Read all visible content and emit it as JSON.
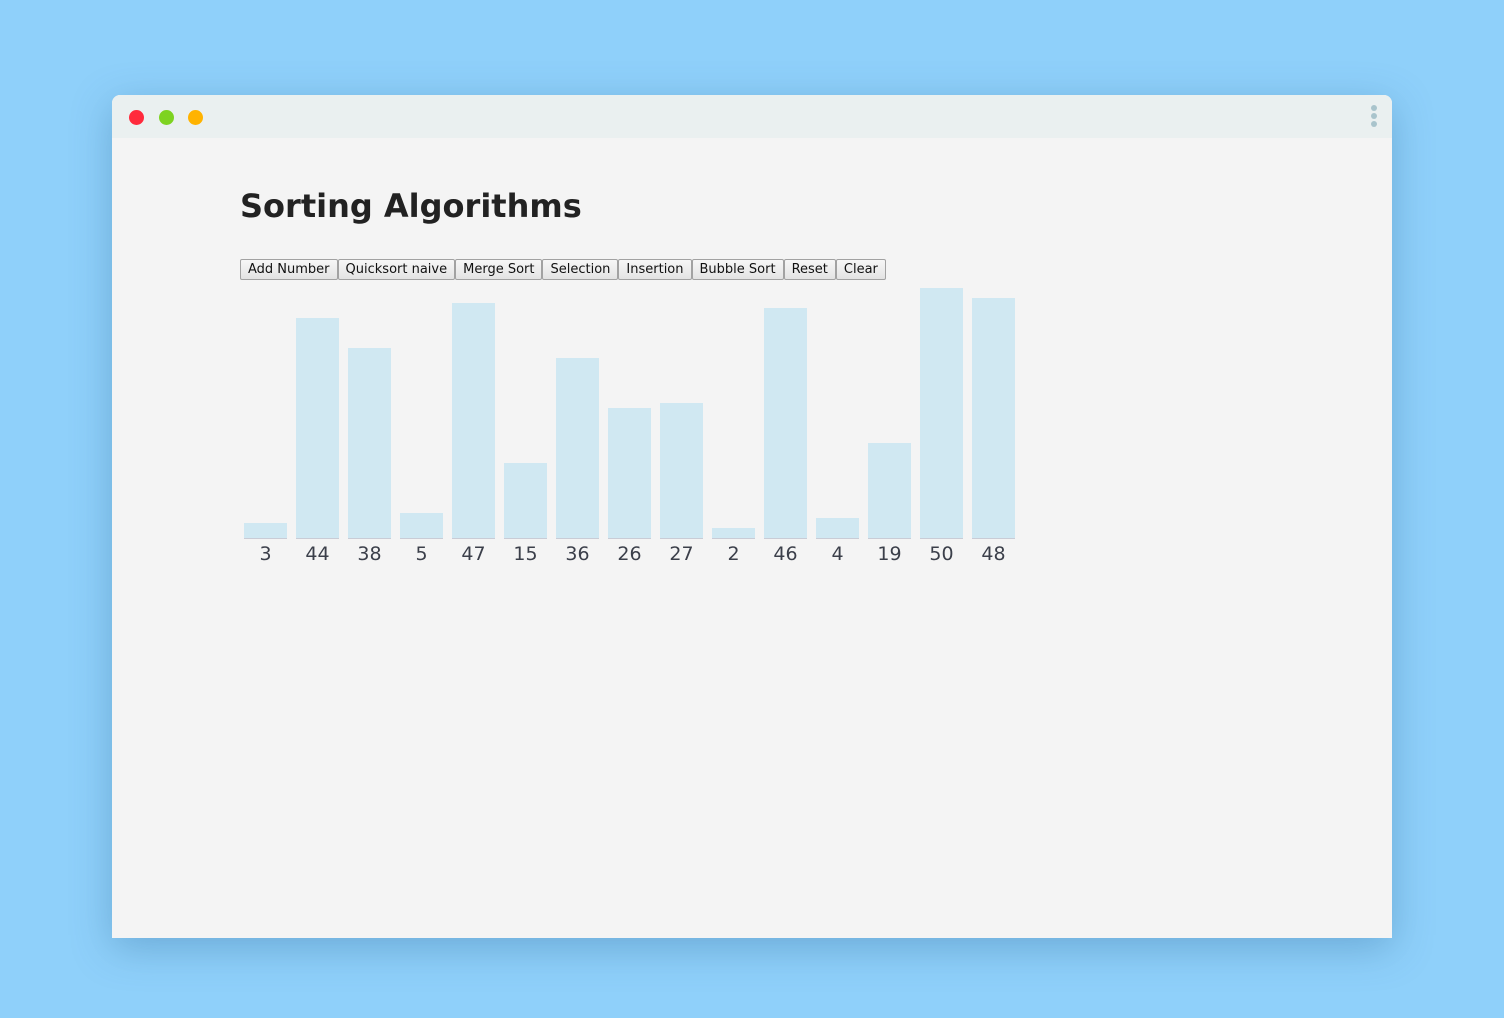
{
  "page": {
    "title": "Sorting Algorithms"
  },
  "toolbar": {
    "buttons": [
      "Add Number",
      "Quicksort naive",
      "Merge Sort",
      "Selection",
      "Insertion",
      "Bubble Sort",
      "Reset",
      "Clear"
    ]
  },
  "colors": {
    "background": "#8fd0fa",
    "window": "#f4f4f4",
    "titlebar": "#eaf0f0",
    "bar": "#d0e8f2",
    "close": "#ff2a3c",
    "maximize": "#7ed321",
    "minimize": "#ffb300"
  },
  "chart_data": {
    "type": "bar",
    "values": [
      3,
      44,
      38,
      5,
      47,
      15,
      36,
      26,
      27,
      2,
      46,
      4,
      19,
      50,
      48
    ]
  }
}
